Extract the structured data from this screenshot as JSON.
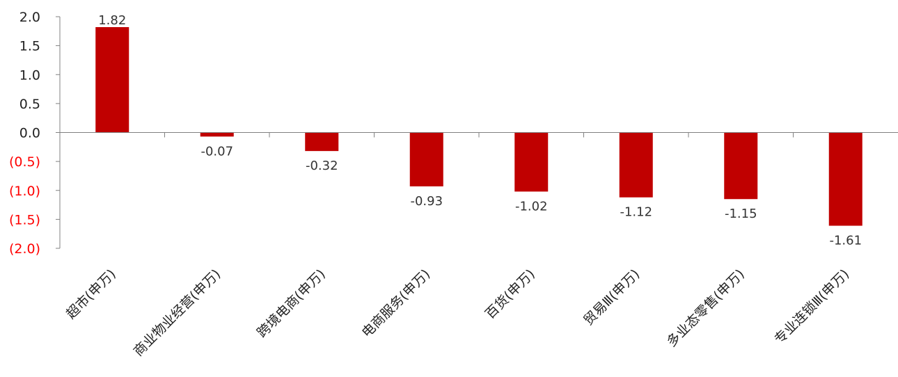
{
  "chart_data": {
    "type": "bar",
    "title": "",
    "xlabel": "",
    "ylabel": "",
    "categories": [
      "超市(申万)",
      "商业物业经营(申万)",
      "跨境电商(申万)",
      "电商服务(申万)",
      "百货(申万)",
      "贸易Ⅲ(申万)",
      "多业态零售(申万)",
      "专业连锁Ⅲ(申万)"
    ],
    "values": [
      1.82,
      -0.07,
      -0.32,
      -0.93,
      -1.02,
      -1.12,
      -1.15,
      -1.61
    ],
    "data_labels": [
      "1.82",
      "-0.07",
      "-0.32",
      "-0.93",
      "-1.02",
      "-1.12",
      "-1.15",
      "-1.61"
    ],
    "ylim": [
      -2.0,
      2.0
    ],
    "yticks": [
      2.0,
      1.5,
      1.0,
      0.5,
      0.0,
      -0.5,
      -1.0,
      -1.5,
      -2.0
    ],
    "ytick_labels": [
      "2.0",
      "1.5",
      "1.0",
      "0.5",
      "0.0",
      "(0.5)",
      "(1.0)",
      "(1.5)",
      "(2.0)"
    ],
    "grid": false,
    "legend": "none",
    "colors": {
      "bar": "#C00000",
      "positive_tick": "#222222",
      "negative_tick": "#FF0000",
      "axis": "#808080"
    }
  }
}
